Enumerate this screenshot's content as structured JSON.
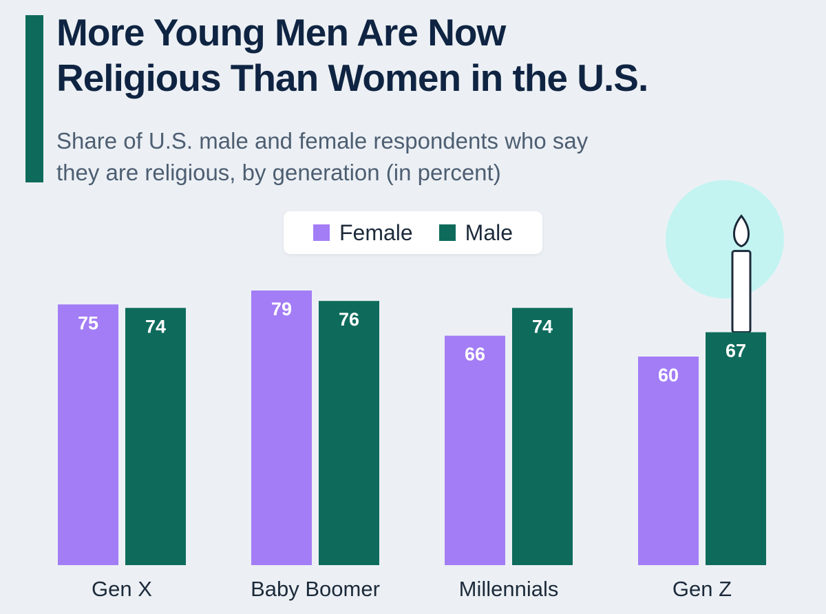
{
  "title_lines": [
    "More Young Men Are Now",
    "Religious Than Women in the U.S."
  ],
  "subtitle_lines": [
    "Share of U.S. male and female respondents who say",
    "they are religious, by generation (in percent)"
  ],
  "colors": {
    "female": "#a37df6",
    "male": "#0e6b5c",
    "accent": "#0e6b5c",
    "background": "#ecf0f4",
    "halo": "#c3f4f1"
  },
  "legend": {
    "female": "Female",
    "male": "Male"
  },
  "chart_data": {
    "type": "bar",
    "title": "More Young Men Are Now Religious Than Women in the U.S.",
    "subtitle": "Share of U.S. male and female respondents who say they are religious, by generation (in percent)",
    "categories": [
      "Gen X",
      "Baby Boomer",
      "Millennials",
      "Gen Z"
    ],
    "series": [
      {
        "name": "Female",
        "values": [
          75,
          79,
          66,
          60
        ]
      },
      {
        "name": "Male",
        "values": [
          74,
          76,
          74,
          67
        ]
      }
    ],
    "xlabel": "",
    "ylabel": "",
    "ylim": [
      0,
      100
    ],
    "grid": false,
    "legend_position": "top-center",
    "data_labels": true
  }
}
